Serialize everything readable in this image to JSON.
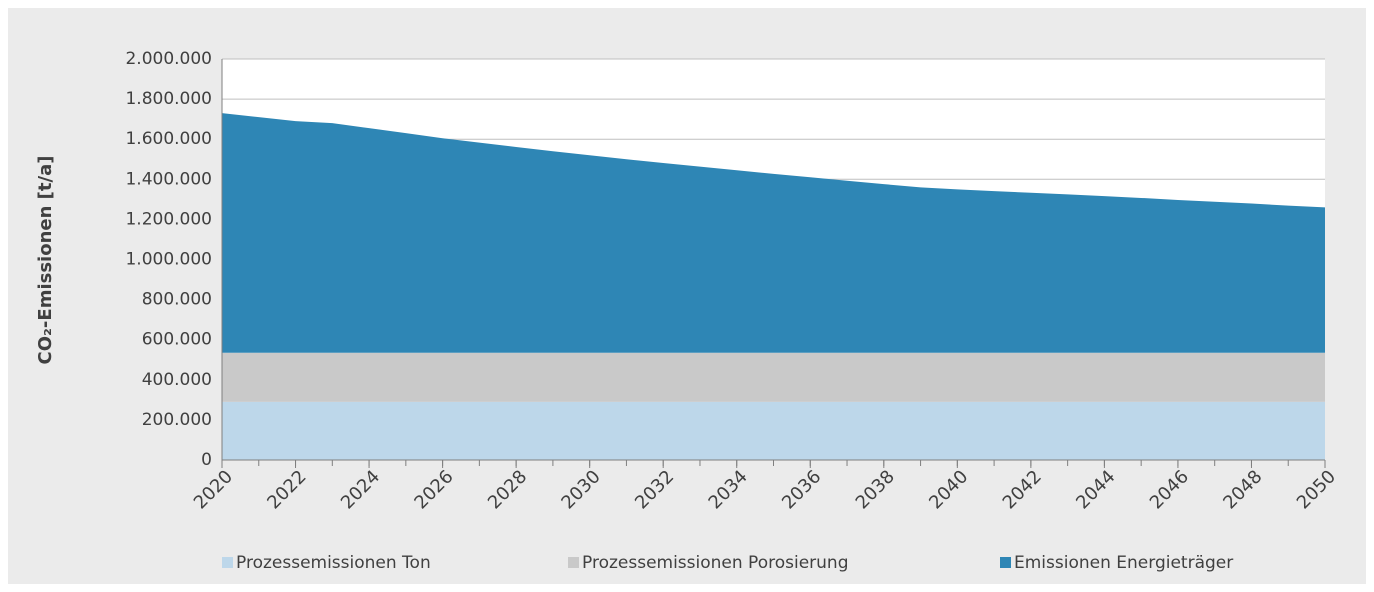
{
  "chart_data": {
    "type": "stacked_area",
    "ylabel": "CO₂-Emissionen [t/a]",
    "x": [
      2020,
      2021,
      2022,
      2023,
      2024,
      2025,
      2026,
      2027,
      2028,
      2029,
      2030,
      2031,
      2032,
      2033,
      2034,
      2035,
      2036,
      2037,
      2038,
      2039,
      2040,
      2041,
      2042,
      2043,
      2044,
      2045,
      2046,
      2047,
      2048,
      2049,
      2050
    ],
    "series": [
      {
        "name": "Prozessemissionen Ton",
        "color": "#bdd7ea",
        "values": [
          290000,
          290000,
          290000,
          290000,
          290000,
          290000,
          290000,
          290000,
          290000,
          290000,
          290000,
          290000,
          290000,
          290000,
          290000,
          290000,
          290000,
          290000,
          290000,
          290000,
          290000,
          290000,
          290000,
          290000,
          290000,
          290000,
          290000,
          290000,
          290000,
          290000,
          290000
        ]
      },
      {
        "name": "Prozessemissionen Porosierung",
        "color": "#c9c9c9",
        "values": [
          245000,
          245000,
          245000,
          245000,
          245000,
          245000,
          245000,
          245000,
          245000,
          245000,
          245000,
          245000,
          245000,
          245000,
          245000,
          245000,
          245000,
          245000,
          245000,
          245000,
          245000,
          245000,
          245000,
          245000,
          245000,
          245000,
          245000,
          245000,
          245000,
          245000,
          245000
        ]
      },
      {
        "name": "Emissionen Energieträger",
        "color": "#2e86b5",
        "values": [
          1195000,
          1175000,
          1155000,
          1145000,
          1120000,
          1095000,
          1070000,
          1048000,
          1026000,
          1005000,
          985000,
          965000,
          946000,
          928000,
          910000,
          892000,
          875000,
          858000,
          841000,
          825000,
          815000,
          806000,
          798000,
          790000,
          781000,
          772000,
          762000,
          753000,
          744000,
          734000,
          725000
        ]
      }
    ],
    "xlim": [
      2020,
      2050
    ],
    "xticks": [
      2020,
      2022,
      2024,
      2026,
      2028,
      2030,
      2032,
      2034,
      2036,
      2038,
      2040,
      2042,
      2044,
      2046,
      2048,
      2050
    ],
    "ylim": [
      0,
      2000000
    ],
    "yticks": [
      0,
      {
        "value": 200000,
        "label": "200.000"
      },
      {
        "value": 400000,
        "label": "400.000"
      },
      {
        "value": 600000,
        "label": "600.000"
      },
      {
        "value": 800000,
        "label": "800.000"
      },
      {
        "value": 1000000,
        "label": "1.000.000"
      },
      {
        "value": 1200000,
        "label": "1.200.000"
      },
      {
        "value": 1400000,
        "label": "1.400.000"
      },
      {
        "value": 1600000,
        "label": "1.600.000"
      },
      {
        "value": 1800000,
        "label": "1.800.000"
      },
      {
        "value": 2000000,
        "label": "2.000.000"
      }
    ],
    "grid": true,
    "legend": "bottom"
  }
}
